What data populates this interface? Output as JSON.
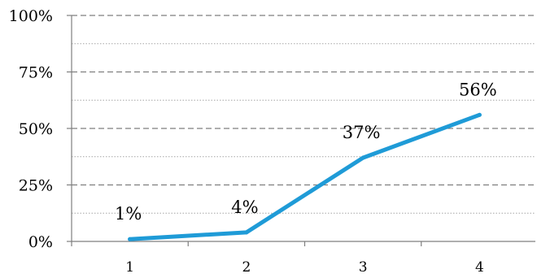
{
  "chart_data": {
    "type": "line",
    "categories": [
      "1",
      "2",
      "3",
      "4"
    ],
    "series": [
      {
        "values": [
          1,
          4,
          37,
          56
        ]
      }
    ],
    "data_labels": [
      "1%",
      "4%",
      "37%",
      "56%"
    ],
    "y_ticks": [
      {
        "value": 0,
        "label": "0%"
      },
      {
        "value": 25,
        "label": "25%"
      },
      {
        "value": 50,
        "label": "50%"
      },
      {
        "value": 75,
        "label": "75%"
      },
      {
        "value": 100,
        "label": "100%"
      }
    ],
    "minor_gridlines": [
      12.5,
      37.5,
      62.5,
      87.5
    ],
    "ylim": [
      0,
      100
    ],
    "title": "",
    "xlabel": "",
    "ylabel": "",
    "grid": true,
    "legend": "none",
    "colors": {
      "line": "#1f9bd7",
      "major_grid": "#7f7f7f",
      "minor_grid": "#a6a6a6",
      "axis": "#7f7f7f"
    }
  }
}
